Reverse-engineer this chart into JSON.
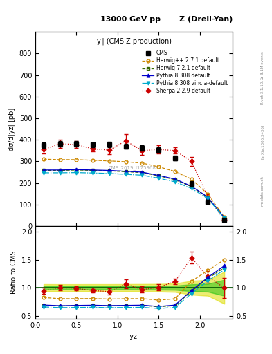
{
  "title_center": "13000 GeV pp",
  "title_right": "Z (Drell-Yan)",
  "plot_title": "y‖ (CMS Z production)",
  "xlabel": "|yᴢ|",
  "ylabel_main": "dσ/d|yᴢ| [pb]",
  "ylabel_ratio": "Ratio to CMS",
  "watermark": "CMS_2019_I1753680",
  "right_label1": "Rivet 3.1.10, ≥ 3.1M events",
  "right_label2": "[arXiv:1306.3436]",
  "right_label3": "mcplots.cern.ch",
  "x_centers": [
    0.1,
    0.3,
    0.5,
    0.7,
    0.9,
    1.1,
    1.3,
    1.5,
    1.7,
    1.9,
    2.1,
    2.3
  ],
  "cms_y": [
    375,
    382,
    382,
    377,
    378,
    370,
    362,
    352,
    315,
    195,
    113,
    28
  ],
  "cms_yerr": [
    12,
    12,
    12,
    12,
    12,
    12,
    12,
    12,
    12,
    12,
    8,
    4
  ],
  "herwig_pp_y": [
    310,
    308,
    308,
    305,
    302,
    298,
    292,
    275,
    253,
    218,
    148,
    42
  ],
  "herwig7_y": [
    258,
    258,
    260,
    258,
    256,
    252,
    248,
    233,
    215,
    183,
    132,
    38
  ],
  "pythia8_y": [
    260,
    260,
    262,
    260,
    258,
    254,
    250,
    235,
    218,
    185,
    134,
    39
  ],
  "pythia8v_y": [
    247,
    247,
    248,
    246,
    244,
    240,
    236,
    222,
    205,
    175,
    127,
    37
  ],
  "sherpa_y": [
    355,
    382,
    378,
    358,
    352,
    395,
    350,
    355,
    350,
    300,
    135,
    28
  ],
  "sherpa_yerr": [
    20,
    20,
    15,
    12,
    20,
    30,
    20,
    20,
    15,
    20,
    12,
    5
  ],
  "ylim_main": [
    0,
    900
  ],
  "ylim_ratio": [
    0.45,
    2.1
  ],
  "yticks_main": [
    0,
    100,
    200,
    300,
    400,
    500,
    600,
    700,
    800
  ],
  "yticks_ratio": [
    0.5,
    1.0,
    1.5,
    2.0
  ],
  "xlim": [
    0.0,
    2.4
  ],
  "cms_color": "#000000",
  "herwig_pp_color": "#cc8800",
  "herwig7_color": "#336600",
  "pythia8_color": "#0000cc",
  "pythia8v_color": "#00aacc",
  "sherpa_color": "#cc0000",
  "band_green": "#00bb00",
  "band_yellow": "#dddd00",
  "band_green_alpha": 0.45,
  "band_yellow_alpha": 0.55
}
